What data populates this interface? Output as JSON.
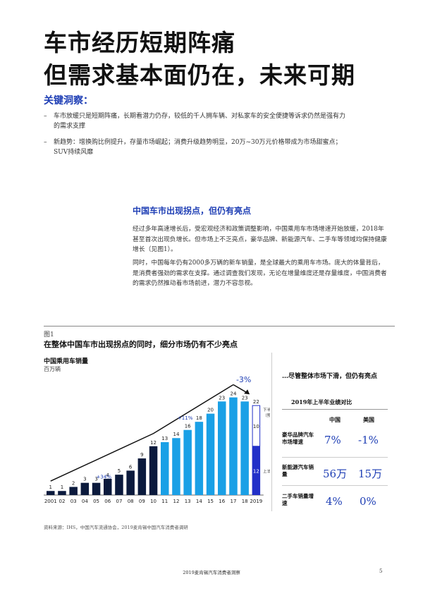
{
  "title_lines": [
    "车市经历短期阵痛",
    "但需求基本面仍在，未来可期"
  ],
  "insights": {
    "heading": "关键洞察：",
    "items": [
      "车市放缓只是短期阵痛，长期看潜力仍存，较低的千人拥车辆、对私家车的安全便捷等诉求仍然是强有力的需求支撑",
      "新趋势：增换购比例提升，存量市场崛起；消费升级趋势明显，20万~30万元价格带成为市场甜蜜点；SUV持续风靡"
    ]
  },
  "section": {
    "heading": "中国车市出现拐点，但仍有亮点",
    "paragraphs": [
      "经过多年高速增长后，受宏观经济和政策调整影响，中国乘用车市场增速开始放缓，2018年甚至首次出现负增长。但市场上不乏亮点，豪华品牌、新能源汽车、二手车等领域均保持健康增长（见图1）。",
      "同时，中国每年仍有2000多万辆的新车销量，是全球最大的乘用车市场。庞大的体量背后，是消费者强劲的需求在支撑。通过调查我们发现，无论在增量维度还是存量维度，中国消费者的需求仍然推动着市场前进，潜力不容忽视。"
    ]
  },
  "figure": {
    "label": "图1",
    "title": "在整体中国车市出现拐点的同时，细分市场仍有不少亮点",
    "chart_title": "中国乘用车销量",
    "chart_unit": "百万辆",
    "source": "资料来源：IHS，中国汽车流通协会，2019麦肯锡中国汽车消费者调研"
  },
  "chart_data": {
    "type": "bar",
    "title": "中国乘用车销量",
    "ylabel": "百万辆",
    "categories": [
      "2001",
      "02",
      "03",
      "04",
      "05",
      "06",
      "07",
      "08",
      "09",
      "10",
      "11",
      "12",
      "13",
      "14",
      "15",
      "16",
      "17",
      "18",
      "2019"
    ],
    "values": [
      1,
      1,
      2,
      3,
      3,
      4,
      5,
      6,
      9,
      12,
      13,
      14,
      16,
      18,
      20,
      23,
      24,
      23,
      22
    ],
    "bar_colors": [
      "#0b1a3d",
      "#0b1a3d",
      "#0b1a3d",
      "#0b1a3d",
      "#0b1a3d",
      "#0b1a3d",
      "#0b1a3d",
      "#0b1a3d",
      "#0b1a3d",
      "#0b1a3d",
      "#1aa0e6",
      "#1aa0e6",
      "#1aa0e6",
      "#1aa0e6",
      "#1aa0e6",
      "#1aa0e6",
      "#1aa0e6",
      "#1aa0e6",
      "#2230c8"
    ],
    "split_2019": {
      "h1": 12,
      "h2_forecast": 10,
      "h1_label": "上半年",
      "h2_label": "下半年（预测）"
    },
    "annotations": [
      "+34%",
      "+11%",
      "-3%"
    ],
    "ylim": [
      0,
      26
    ]
  },
  "panel": {
    "heading": "…尽管整体市场下滑，但仍有亮点",
    "subheading": "2019年上半年业绩对比",
    "columns": [
      "中国",
      "美国"
    ],
    "rows": [
      {
        "label": "豪华品牌汽车市场增速",
        "china": "7%",
        "us": "-1%"
      },
      {
        "label": "新能源汽车销量",
        "china": "56万",
        "us": "15万"
      },
      {
        "label": "二手车销量增速",
        "china": "4%",
        "us": "0%"
      }
    ]
  },
  "footer": {
    "text": "2019麦肯锡汽车消费者洞察",
    "page": "5"
  },
  "colors": {
    "accent": "#1f3fb5",
    "dark_bar": "#0b1a3d",
    "light_bar": "#1aa0e6",
    "bar_2019": "#2230c8"
  }
}
